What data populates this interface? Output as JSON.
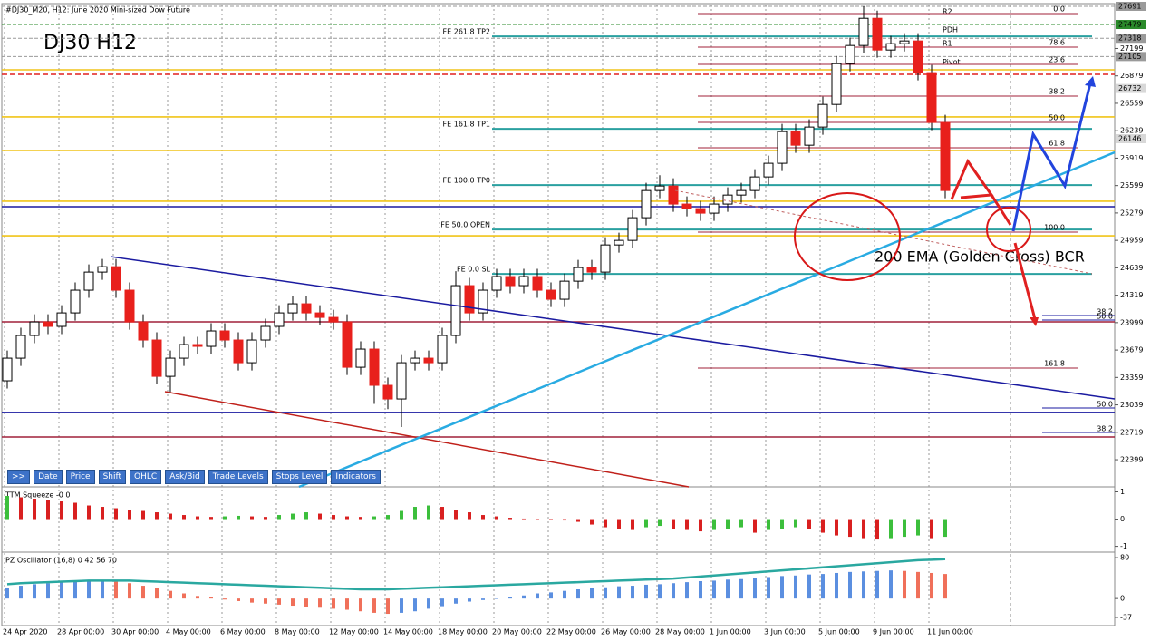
{
  "chart_data": [
    {
      "type": "candlestick",
      "title": "#DJ30_M20, H12:  June 2020 Mini-sized Dow Future",
      "symbol_label": "DJ30 H12",
      "annotation": "200 EMA (Golden Cross) BCR",
      "categories": [
        "24 Apr 2020",
        null,
        null,
        null,
        "28 Apr 00:00",
        null,
        null,
        null,
        "30 Apr 00:00",
        null,
        null,
        null,
        "4 May 00:00",
        null,
        null,
        null,
        "6 May 00:00",
        null,
        null,
        null,
        "8 May 00:00",
        null,
        null,
        null,
        "12 May 00:00",
        null,
        null,
        null,
        "14 May 00:00",
        null,
        null,
        null,
        "18 May 00:00",
        null,
        null,
        null,
        "20 May 00:00",
        null,
        null,
        null,
        "22 May 00:00",
        null,
        null,
        null,
        "26 May 00:00",
        null,
        null,
        null,
        "28 May 00:00",
        null,
        null,
        null,
        "1 Jun 00:00",
        null,
        null,
        null,
        "3 Jun 00:00",
        null,
        null,
        null,
        "5 Jun 00:00",
        null,
        null,
        null,
        "9 Jun 00:00",
        null,
        null,
        null,
        "11 Jun 00:00",
        null
      ],
      "open": [
        23320,
        23584,
        23849,
        24007,
        23955,
        24113,
        24378,
        24589,
        24652,
        24378,
        24007,
        23796,
        23372,
        23584,
        23743,
        23722,
        23902,
        23796,
        23531,
        23796,
        23955,
        24113,
        24219,
        24113,
        24060,
        24007,
        23478,
        23690,
        23267,
        23108,
        23531,
        23584,
        23531,
        23849,
        24431,
        24113,
        24378,
        24537,
        24431,
        24537,
        24378,
        24272,
        24483,
        24642,
        24589,
        24906,
        24959,
        25224,
        25541,
        25594,
        25383,
        25330,
        25277,
        25383,
        25488,
        25541,
        25700,
        25859,
        26229,
        26070,
        26282,
        26546,
        27022,
        27234,
        27551,
        27181,
        27255,
        27287,
        26917,
        26335
      ],
      "high": [
        23674,
        23939,
        24097,
        24097,
        24203,
        24468,
        24679,
        24742,
        24742,
        24468,
        24097,
        23886,
        23674,
        23833,
        23833,
        23992,
        23992,
        23886,
        23886,
        24045,
        24203,
        24309,
        24309,
        24203,
        24150,
        24097,
        23780,
        23780,
        23357,
        23621,
        23674,
        23674,
        23939,
        24600,
        24521,
        24468,
        24627,
        24627,
        24627,
        24627,
        24468,
        24573,
        24732,
        24732,
        24996,
        25049,
        25314,
        25631,
        25720,
        25684,
        25473,
        25420,
        25473,
        25578,
        25631,
        25790,
        25949,
        26319,
        26319,
        26372,
        26636,
        27112,
        27324,
        27691,
        27641,
        27345,
        27377,
        27377,
        27007,
        26425
      ],
      "low": [
        23230,
        23494,
        23759,
        23865,
        23865,
        24023,
        24288,
        24499,
        24288,
        23917,
        23706,
        23282,
        23180,
        23494,
        23632,
        23632,
        23706,
        23441,
        23441,
        23706,
        23865,
        24023,
        24023,
        23970,
        23917,
        23388,
        23388,
        23050,
        22990,
        22780,
        23441,
        23441,
        23441,
        23759,
        24023,
        24023,
        24288,
        24341,
        24341,
        24288,
        24182,
        24182,
        24393,
        24499,
        24499,
        24816,
        24869,
        25134,
        25451,
        25293,
        25240,
        25187,
        25187,
        25293,
        25398,
        25451,
        25610,
        25769,
        25980,
        25980,
        26192,
        26456,
        26932,
        27144,
        27091,
        27091,
        27165,
        26827,
        26245,
        25451
      ],
      "close": [
        23584,
        23849,
        24007,
        23955,
        24113,
        24378,
        24589,
        24652,
        24378,
        24007,
        23796,
        23372,
        23584,
        23743,
        23722,
        23902,
        23796,
        23531,
        23796,
        23955,
        24113,
        24219,
        24113,
        24060,
        24007,
        23478,
        23690,
        23267,
        23108,
        23531,
        23584,
        23531,
        23849,
        24431,
        24113,
        24378,
        24537,
        24431,
        24537,
        24378,
        24272,
        24483,
        24642,
        24589,
        24906,
        24959,
        25224,
        25541,
        25594,
        25383,
        25330,
        25277,
        25383,
        25488,
        25541,
        25700,
        25859,
        26229,
        26070,
        26282,
        26546,
        27022,
        27234,
        27551,
        27181,
        27255,
        27287,
        26917,
        26335,
        25541
      ],
      "up_color": "#ffffff",
      "down_color": "#e8201c",
      "ylim": [
        22082,
        27712
      ],
      "yticks": [
        22399,
        22719,
        23039,
        23359,
        23679,
        23999,
        24319,
        24639,
        24959,
        25279,
        25599,
        25919,
        26239,
        26559,
        26879,
        27199
      ],
      "levels": [
        {
          "name": "R2",
          "value": 27691,
          "color": "#9a9a9a"
        },
        {
          "name": "PDH",
          "value": 27479,
          "color": "#2a8a2a"
        },
        {
          "name": "R1",
          "value": 27318,
          "color": "#9a9a9a"
        },
        {
          "name": "Pivot",
          "value": 27105,
          "color": "#9a9a9a"
        }
      ],
      "price_marks": [
        26732,
        26146
      ],
      "fib_extensions": [
        {
          "name": "FE 261.8 TP2",
          "value": 27340
        },
        {
          "name": "FE 161.8 TP1",
          "value": 26261
        },
        {
          "name": "FE 100.0 TP0",
          "value": 25605
        },
        {
          "name": "FE 50.0 OPEN",
          "value": 25086
        },
        {
          "name": "FE 0.0 SL",
          "value": 24568
        }
      ],
      "fib_color": "#2aa0a0",
      "fib_retracement": [
        {
          "name": "0.0",
          "value": 27606
        },
        {
          "name": "78.6",
          "value": 27215
        },
        {
          "name": "23.6",
          "value": 27014
        },
        {
          "name": "38.2",
          "value": 26643
        },
        {
          "name": "50.0",
          "value": 26336
        },
        {
          "name": "61.8",
          "value": 26040
        },
        {
          "name": "100.0",
          "value": 25056
        },
        {
          "name": "161.8",
          "value": 23468
        }
      ],
      "retracement_color": "#a0203a",
      "fib_retracement_2": [
        {
          "name": "38.2",
          "value": 24082
        },
        {
          "name": "50.0",
          "value": 24029
        },
        {
          "name": "50.0",
          "value": 23003
        },
        {
          "name": "38.2",
          "value": 22717
        }
      ],
      "hlines": [
        {
          "value": 26950,
          "color": "#f0c418"
        },
        {
          "value": 26400,
          "color": "#f0c418"
        },
        {
          "value": 26008,
          "color": "#f0c418"
        },
        {
          "value": 25416,
          "color": "#f0c418"
        },
        {
          "value": 25013,
          "color": "#f0c418"
        },
        {
          "value": 26897,
          "color": "#e02020",
          "dash": true
        },
        {
          "value": 25352,
          "color": "#1a1aa0"
        },
        {
          "value": 22950,
          "color": "#1a1aa0"
        },
        {
          "value": 24008,
          "color": "#a0203a"
        },
        {
          "value": 22664,
          "color": "#a0203a"
        }
      ]
    },
    {
      "type": "bar",
      "title": "TTM Squeeze -0 0",
      "values": [
        0.85,
        0.8,
        0.75,
        0.7,
        0.65,
        0.6,
        0.5,
        0.45,
        0.4,
        0.35,
        0.3,
        0.25,
        0.2,
        0.15,
        0.1,
        0.08,
        0.1,
        0.12,
        0.1,
        0.08,
        0.15,
        0.2,
        0.25,
        0.2,
        0.15,
        0.1,
        0.08,
        0.1,
        0.15,
        0.3,
        0.45,
        0.5,
        0.45,
        0.35,
        0.25,
        0.15,
        0.1,
        0.05,
        0.02,
        0,
        -0.02,
        -0.05,
        -0.1,
        -0.2,
        -0.3,
        -0.35,
        -0.4,
        -0.3,
        -0.25,
        -0.35,
        -0.4,
        -0.45,
        -0.4,
        -0.35,
        -0.3,
        -0.5,
        -0.4,
        -0.35,
        -0.3,
        -0.35,
        -0.5,
        -0.6,
        -0.65,
        -0.7,
        -0.75,
        -0.7,
        -0.65,
        -0.6,
        -0.7,
        -0.65
      ],
      "rise_color": "#3cbf3c",
      "fall_color": "#d92020",
      "ylim": [
        -1.18,
        1.15
      ],
      "yticks": [
        1,
        0,
        -1
      ]
    },
    {
      "type": "bar",
      "title": "PZ Oscillator (16,8) 0 42 56 70",
      "values": [
        20,
        25,
        28,
        30,
        32,
        33,
        34,
        35,
        33,
        30,
        25,
        20,
        15,
        10,
        5,
        2,
        -2,
        -5,
        -8,
        -10,
        -12,
        -14,
        -16,
        -18,
        -20,
        -22,
        -25,
        -28,
        -30,
        -28,
        -25,
        -20,
        -15,
        -10,
        -6,
        -3,
        0,
        3,
        6,
        10,
        12,
        15,
        18,
        20,
        22,
        24,
        25,
        27,
        28,
        30,
        32,
        34,
        35,
        37,
        38,
        40,
        42,
        44,
        45,
        47,
        48,
        50,
        52,
        53,
        54,
        55,
        54,
        52,
        50,
        48
      ],
      "rise_color": "#5b8fe0",
      "fall_color": "#f0705a",
      "line": {
        "color": "#2aa8a0",
        "values": [
          28,
          30,
          31,
          32,
          33,
          34,
          35,
          35,
          35,
          35,
          34,
          33,
          32,
          31,
          30,
          29,
          28,
          27,
          26,
          25,
          24,
          23,
          22,
          21,
          20,
          19,
          18,
          18,
          18,
          19,
          20,
          21,
          22,
          23,
          24,
          25,
          26,
          27,
          28,
          29,
          30,
          31,
          32,
          33,
          34,
          35,
          36,
          37,
          38,
          39,
          41,
          43,
          45,
          47,
          49,
          51,
          53,
          55,
          57,
          59,
          61,
          63,
          65,
          67,
          69,
          71,
          73,
          75,
          76,
          77
        ]
      },
      "ylim": [
        -53,
        89
      ],
      "yticks": [
        80,
        0,
        -37
      ]
    }
  ],
  "toolbar": [
    ">>",
    "Date",
    "Price",
    "Shift",
    "OHLC",
    "Ask/Bid",
    "Trade Levels",
    "Stops Level",
    "Indicators"
  ]
}
